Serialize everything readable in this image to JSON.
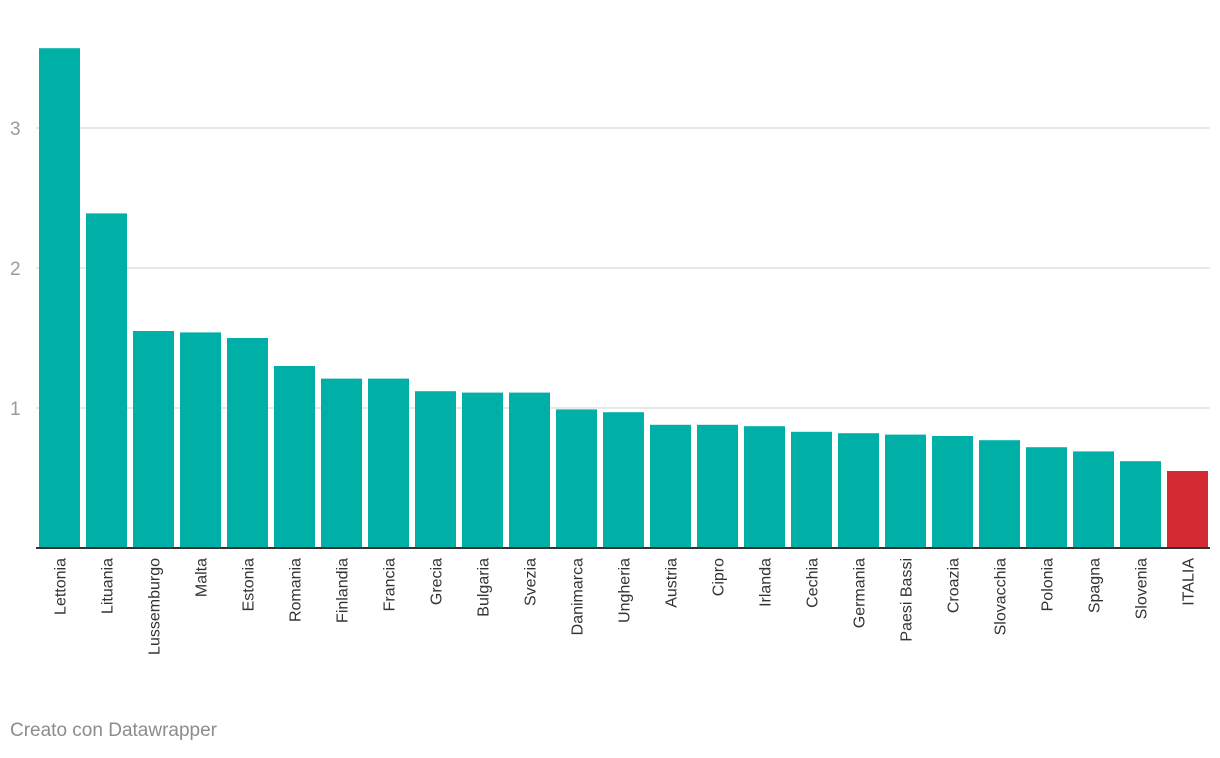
{
  "chart_data": {
    "type": "bar",
    "title": "",
    "xlabel": "",
    "ylabel": "",
    "ylim": [
      0,
      3.6
    ],
    "yticks": [
      1,
      2,
      3
    ],
    "colors": {
      "default": "#00b0a6",
      "highlight": "#d42a33",
      "grid": "#e2e2e2",
      "axis": "#333333"
    },
    "highlight_category": "ITALIA",
    "categories": [
      "Lettonia",
      "Lituania",
      "Lussemburgo",
      "Malta",
      "Estonia",
      "Romania",
      "Finlandia",
      "Francia",
      "Grecia",
      "Bulgaria",
      "Svezia",
      "Danimarca",
      "Ungheria",
      "Austria",
      "Cipro",
      "Irlanda",
      "Cechia",
      "Germania",
      "Paesi Bassi",
      "Croazia",
      "Slovacchia",
      "Polonia",
      "Spagna",
      "Slovenia",
      "ITALIA"
    ],
    "values": [
      3.57,
      2.39,
      1.55,
      1.54,
      1.5,
      1.3,
      1.21,
      1.21,
      1.12,
      1.11,
      1.11,
      0.99,
      0.97,
      0.88,
      0.88,
      0.87,
      0.83,
      0.82,
      0.81,
      0.8,
      0.77,
      0.72,
      0.69,
      0.62,
      0.55
    ]
  },
  "footer": {
    "credit": "Creato con Datawrapper"
  }
}
